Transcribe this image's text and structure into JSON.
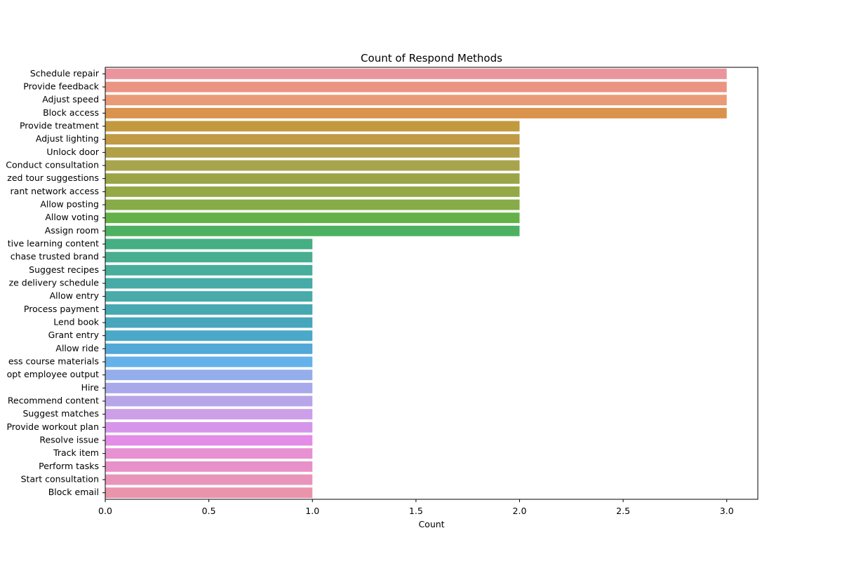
{
  "chart_data": {
    "type": "bar",
    "orientation": "horizontal",
    "title": "Count of Respond Methods",
    "xlabel": "Count",
    "ylabel": "",
    "xlim": [
      0,
      3.15
    ],
    "xticks": [
      "0.0",
      "0.5",
      "1.0",
      "1.5",
      "2.0",
      "2.5",
      "3.0"
    ],
    "grid": false,
    "legend": "none",
    "categories": [
      "Schedule repair",
      "Provide feedback",
      "Adjust speed",
      "Block access",
      "Provide treatment",
      "Adjust lighting",
      "Unlock door",
      "Conduct consultation",
      "zed tour suggestions",
      "rant network access",
      "Allow posting",
      "Allow voting",
      "Assign room",
      "tive learning content",
      "chase trusted brand",
      "Suggest recipes",
      "ze delivery schedule",
      "Allow entry",
      "Process payment",
      "Lend book",
      "Grant entry",
      "Allow ride",
      "ess course materials",
      "opt employee output",
      "Hire",
      "Recommend content",
      "Suggest matches",
      "Provide workout plan",
      "Resolve issue",
      "Track item",
      "Perform tasks",
      "Start consultation",
      "Block email"
    ],
    "values": [
      3,
      3,
      3,
      3,
      2,
      2,
      2,
      2,
      2,
      2,
      2,
      2,
      2,
      1,
      1,
      1,
      1,
      1,
      1,
      1,
      1,
      1,
      1,
      1,
      1,
      1,
      1,
      1,
      1,
      1,
      1,
      1,
      1
    ],
    "colors": [
      "#ea959d",
      "#ea9484",
      "#e99a76",
      "#da934c",
      "#c3993f",
      "#c19a46",
      "#b1a048",
      "#a8a44b",
      "#9ba547",
      "#94a846",
      "#86ab47",
      "#64b247",
      "#4db161",
      "#46ae83",
      "#49ae90",
      "#48ad9b",
      "#46aba6",
      "#48aaa9",
      "#46a8b1",
      "#47a6bb",
      "#4aa8c9",
      "#52a8d6",
      "#65b1ea",
      "#93aeea",
      "#a8a8ea",
      "#b8a4e8",
      "#cc9fe8",
      "#d596e9",
      "#e38ce8",
      "#e791d3",
      "#e890c9",
      "#e994bb",
      "#ea94ac"
    ]
  }
}
